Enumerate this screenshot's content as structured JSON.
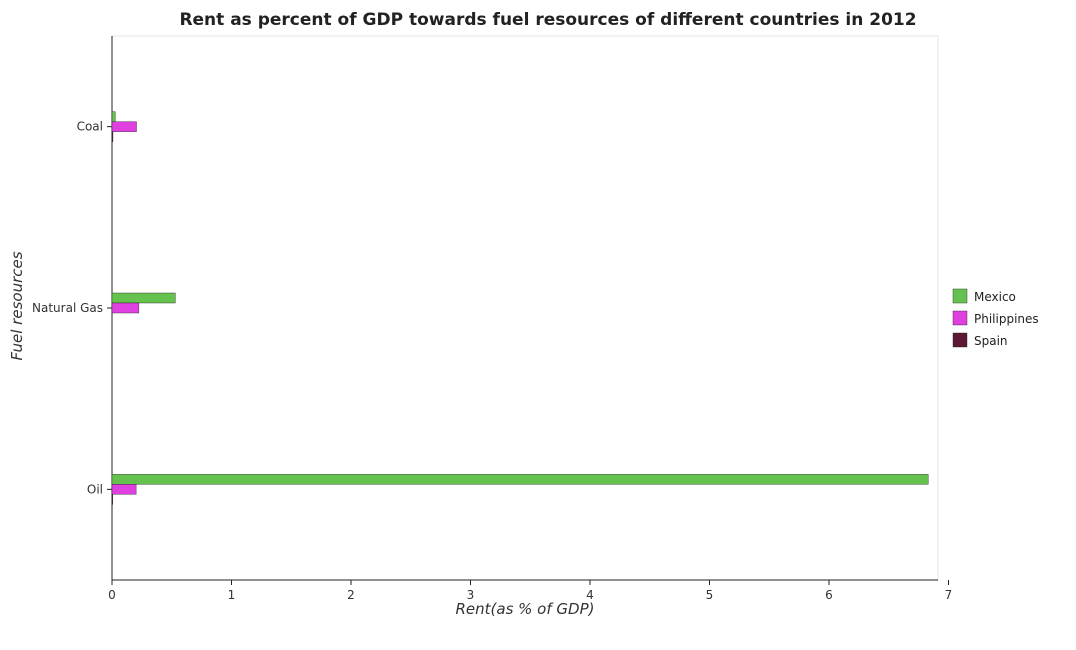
{
  "chart_data": {
    "type": "bar",
    "orientation": "horizontal",
    "title": "Rent as percent of GDP towards fuel resources of different countries in 2012",
    "xlabel": "Rent(as % of GDP)",
    "ylabel": "Fuel resources",
    "categories": [
      "Coal",
      "Natural Gas",
      "Oil"
    ],
    "xlim": [
      0,
      7.2
    ],
    "xticks": [
      "0",
      "1",
      "2",
      "3",
      "4",
      "5",
      "6",
      "7"
    ],
    "grid": false,
    "legend_position": "right",
    "series": [
      {
        "name": "Mexico",
        "color": "#66c24e",
        "values": [
          0.027,
          0.53,
          6.83
        ]
      },
      {
        "name": "Philippines",
        "color": "#e040e0",
        "values": [
          0.205,
          0.225,
          0.202
        ]
      },
      {
        "name": "Spain",
        "color": "#5c1a34",
        "values": [
          0.008,
          0.0004,
          0.006
        ]
      }
    ]
  }
}
